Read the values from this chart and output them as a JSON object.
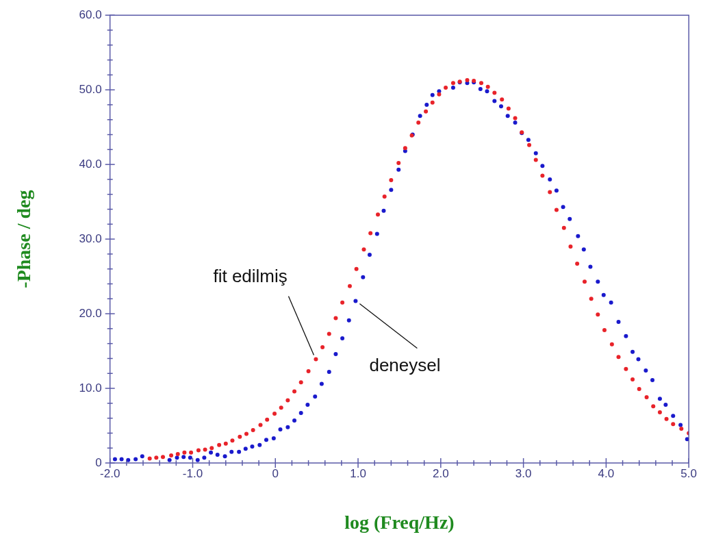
{
  "chart_data": {
    "type": "scatter",
    "xlabel": "log (Freq/Hz)",
    "ylabel": "-Phase / deg",
    "xlim": [
      -2,
      5
    ],
    "ylim": [
      0,
      60
    ],
    "xticks": [
      {
        "value": -2,
        "label": "-2.0"
      },
      {
        "value": -1.8,
        "label": null
      },
      {
        "value": -1.6,
        "label": null
      },
      {
        "value": -1.4,
        "label": null
      },
      {
        "value": -1.2,
        "label": null
      },
      {
        "value": -1,
        "label": "-1.0"
      },
      {
        "value": -0.8,
        "label": null
      },
      {
        "value": -0.6,
        "label": null
      },
      {
        "value": -0.4,
        "label": null
      },
      {
        "value": -0.2,
        "label": null
      },
      0,
      {
        "value": 0.2,
        "label": null
      },
      {
        "value": 0.4,
        "label": null
      },
      {
        "value": 0.6,
        "label": null
      },
      {
        "value": 0.8,
        "label": null
      },
      {
        "value": 1,
        "label": "1.0"
      },
      {
        "value": 1.2,
        "label": null
      },
      {
        "value": 1.4,
        "label": null
      },
      {
        "value": 1.6,
        "label": null
      },
      {
        "value": 1.8,
        "label": null
      },
      {
        "value": 2,
        "label": "2.0"
      },
      {
        "value": 2.2,
        "label": null
      },
      {
        "value": 2.4,
        "label": null
      },
      {
        "value": 2.6,
        "label": null
      },
      {
        "value": 2.8,
        "label": null
      },
      {
        "value": 3,
        "label": "3.0"
      },
      {
        "value": 3.2,
        "label": null
      },
      {
        "value": 3.4,
        "label": null
      },
      {
        "value": 3.6,
        "label": null
      },
      {
        "value": 3.8,
        "label": null
      },
      {
        "value": 4,
        "label": "4.0"
      },
      {
        "value": 4.2,
        "label": null
      },
      {
        "value": 4.4,
        "label": null
      },
      {
        "value": 4.6,
        "label": null
      },
      {
        "value": 4.8,
        "label": null
      },
      {
        "value": 5,
        "label": "5.0"
      }
    ],
    "yticks": [
      0,
      {
        "value": 2,
        "label": null
      },
      {
        "value": 4,
        "label": null
      },
      {
        "value": 6,
        "label": null
      },
      {
        "value": 8,
        "label": null
      },
      {
        "value": 10,
        "label": "10.0"
      },
      {
        "value": 12,
        "label": null
      },
      {
        "value": 14,
        "label": null
      },
      {
        "value": 16,
        "label": null
      },
      {
        "value": 18,
        "label": null
      },
      {
        "value": 20,
        "label": "20.0"
      },
      {
        "value": 22,
        "label": null
      },
      {
        "value": 24,
        "label": null
      },
      {
        "value": 26,
        "label": null
      },
      {
        "value": 28,
        "label": null
      },
      {
        "value": 30,
        "label": "30.0"
      },
      {
        "value": 32,
        "label": null
      },
      {
        "value": 34,
        "label": null
      },
      {
        "value": 36,
        "label": null
      },
      {
        "value": 38,
        "label": null
      },
      {
        "value": 40,
        "label": "40.0"
      },
      {
        "value": 42,
        "label": null
      },
      {
        "value": 44,
        "label": null
      },
      {
        "value": 46,
        "label": null
      },
      {
        "value": 48,
        "label": null
      },
      {
        "value": 50,
        "label": "50.0"
      },
      {
        "value": 52,
        "label": null
      },
      {
        "value": 54,
        "label": null
      },
      {
        "value": 56,
        "label": null
      },
      {
        "value": 58,
        "label": null
      },
      {
        "value": 60,
        "label": "60.0"
      }
    ],
    "grid": false,
    "legend": false,
    "marker": "circle",
    "annotations": [
      {
        "text": "fit edilmiş",
        "x": 0.49,
        "y": 13.9
      },
      {
        "text": "deneysel",
        "x": 0.97,
        "y": 21.7
      }
    ],
    "series": [
      {
        "color": "#e8232a",
        "x": [
          -1.52,
          -1.44,
          -1.36,
          -1.26,
          -1.18,
          -1.1,
          -1.02,
          -0.93,
          -0.85,
          -0.77,
          -0.68,
          -0.6,
          -0.52,
          -0.43,
          -0.35,
          -0.27,
          -0.18,
          -0.1,
          -0.01,
          0.07,
          0.15,
          0.23,
          0.31,
          0.4,
          0.49,
          0.57,
          0.65,
          0.73,
          0.81,
          0.9,
          0.98,
          1.07,
          1.15,
          1.24,
          1.32,
          1.4,
          1.49,
          1.57,
          1.65,
          1.73,
          1.82,
          1.9,
          1.98,
          2.06,
          2.15,
          2.23,
          2.32,
          2.4,
          2.49,
          2.57,
          2.65,
          2.74,
          2.82,
          2.9,
          2.98,
          3.07,
          3.15,
          3.23,
          3.32,
          3.4,
          3.49,
          3.57,
          3.65,
          3.74,
          3.82,
          3.9,
          3.98,
          4.07,
          4.15,
          4.24,
          4.32,
          4.4,
          4.49,
          4.57,
          4.65,
          4.73,
          4.81,
          4.91,
          5.0
        ],
        "values": [
          0.6,
          0.7,
          0.8,
          1.0,
          1.2,
          1.4,
          1.4,
          1.7,
          1.8,
          2.0,
          2.4,
          2.6,
          3.0,
          3.5,
          3.9,
          4.4,
          5.1,
          5.8,
          6.6,
          7.4,
          8.4,
          9.6,
          10.8,
          12.3,
          13.9,
          15.5,
          17.3,
          19.4,
          21.5,
          23.7,
          26.0,
          28.6,
          30.8,
          33.3,
          35.7,
          37.9,
          40.2,
          42.2,
          43.9,
          45.6,
          47.1,
          48.3,
          49.4,
          50.3,
          50.9,
          51.1,
          51.3,
          51.2,
          50.9,
          50.4,
          49.6,
          48.7,
          47.5,
          46.2,
          44.3,
          42.6,
          40.6,
          38.5,
          36.3,
          33.9,
          31.5,
          29.0,
          26.7,
          24.3,
          22.0,
          19.9,
          17.8,
          15.9,
          14.2,
          12.6,
          11.2,
          9.9,
          8.8,
          7.6,
          6.8,
          5.9,
          5.2,
          4.6,
          4.0
        ]
      },
      {
        "color": "#1a1acc",
        "x": [
          -1.94,
          -1.86,
          -1.78,
          -1.69,
          -1.61,
          -1.36,
          -1.28,
          -1.19,
          -1.11,
          -1.03,
          -0.94,
          -0.86,
          -0.78,
          -0.7,
          -0.61,
          -0.53,
          -0.44,
          -0.36,
          -0.28,
          -0.19,
          -0.11,
          -0.02,
          0.06,
          0.15,
          0.23,
          0.31,
          0.39,
          0.48,
          0.56,
          0.65,
          0.73,
          0.81,
          0.89,
          0.97,
          1.06,
          1.14,
          1.23,
          1.31,
          1.4,
          1.49,
          1.57,
          1.66,
          1.75,
          1.83,
          1.9,
          1.98,
          2.06,
          2.15,
          2.23,
          2.32,
          2.4,
          2.48,
          2.56,
          2.65,
          2.73,
          2.81,
          2.9,
          2.98,
          3.06,
          3.15,
          3.23,
          3.32,
          3.4,
          3.48,
          3.56,
          3.66,
          3.73,
          3.81,
          3.9,
          3.97,
          4.06,
          4.15,
          4.24,
          4.32,
          4.39,
          4.48,
          4.56,
          4.65,
          4.72,
          4.81,
          4.9,
          4.98
        ],
        "values": [
          0.5,
          0.5,
          0.4,
          0.5,
          0.9,
          null,
          0.4,
          0.7,
          0.8,
          0.7,
          0.4,
          0.7,
          1.4,
          1.1,
          0.9,
          1.5,
          1.5,
          1.9,
          2.2,
          2.4,
          3.1,
          3.3,
          4.5,
          4.8,
          5.7,
          6.7,
          7.8,
          8.9,
          10.6,
          12.2,
          14.6,
          16.7,
          19.1,
          21.7,
          24.9,
          27.9,
          30.7,
          33.8,
          36.6,
          39.3,
          41.8,
          44.0,
          46.5,
          48.0,
          49.3,
          49.8,
          null,
          50.3,
          51.0,
          50.9,
          51.0,
          50.1,
          49.8,
          48.5,
          47.8,
          46.5,
          45.6,
          44.2,
          43.3,
          41.5,
          39.8,
          38.0,
          36.5,
          34.3,
          32.7,
          30.4,
          28.6,
          26.3,
          24.3,
          22.5,
          21.5,
          18.9,
          17.0,
          14.9,
          13.9,
          12.4,
          11.1,
          8.6,
          7.8,
          6.3,
          5.1,
          3.2
        ]
      }
    ]
  }
}
